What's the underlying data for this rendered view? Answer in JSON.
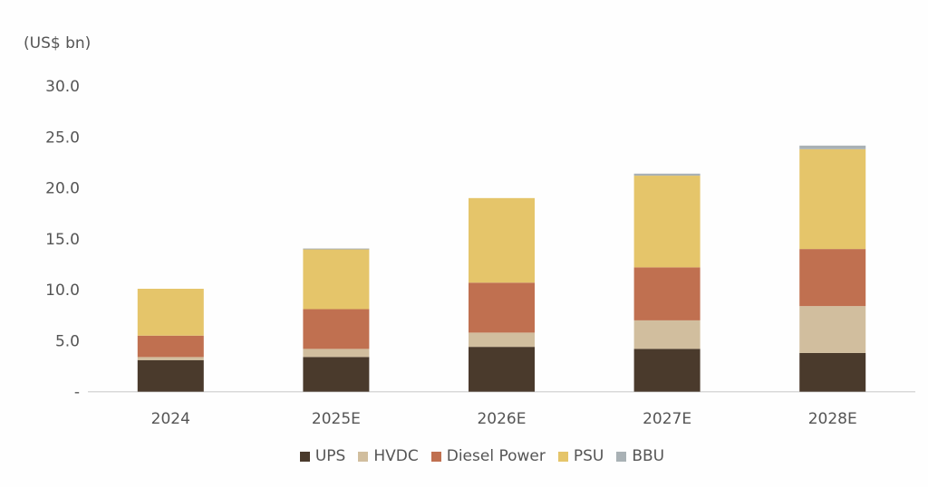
{
  "chart_data": {
    "type": "bar",
    "stacked": true,
    "title": "",
    "unit_label": "(US$ bn)",
    "xlabel": "",
    "ylabel": "(US$ bn)",
    "ylim": [
      0,
      30
    ],
    "yticks": [
      0,
      5,
      10,
      15,
      20,
      25,
      30
    ],
    "ytick_labels": [
      "-",
      "5.0",
      "10.0",
      "15.0",
      "20.0",
      "25.0",
      "30.0"
    ],
    "categories": [
      "2024",
      "2025E",
      "2026E",
      "2027E",
      "2028E"
    ],
    "series": [
      {
        "name": "UPS",
        "color": "#4a3a2c",
        "values": [
          3.1,
          3.4,
          4.4,
          4.2,
          3.8
        ]
      },
      {
        "name": "HVDC",
        "color": "#d1be9e",
        "values": [
          0.3,
          0.8,
          1.4,
          2.8,
          4.6
        ]
      },
      {
        "name": "Diesel Power",
        "color": "#c07050",
        "values": [
          2.1,
          3.9,
          4.9,
          5.2,
          5.6
        ]
      },
      {
        "name": "PSU",
        "color": "#e5c56a",
        "values": [
          4.6,
          5.9,
          8.3,
          9.0,
          9.8
        ]
      },
      {
        "name": "BBU",
        "color": "#a9b1b5",
        "values": [
          0.0,
          0.05,
          0.0,
          0.2,
          0.35
        ]
      }
    ],
    "grid": false,
    "legend_position": "bottom"
  }
}
